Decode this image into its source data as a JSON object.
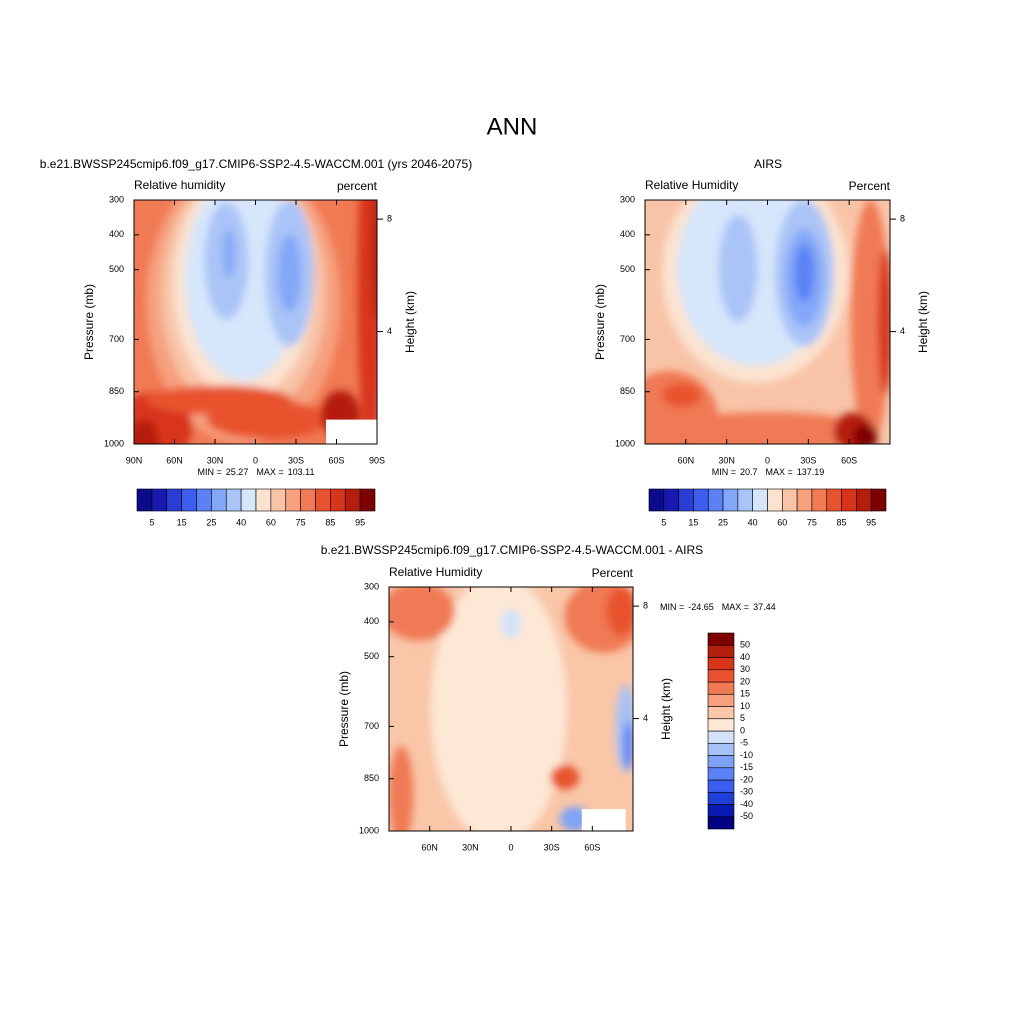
{
  "title": "ANN",
  "chart_data": [
    {
      "type": "contour",
      "title": "b.e21.BWSSP245cmip6.f09_g17.CMIP6-SSP2-4.5-WACCM.001 (yrs 2046-2075)",
      "left_label": "Relative humidity",
      "right_label": "percent",
      "ylabel": "Pressure (mb)",
      "y2label": "Height (km)",
      "xlim": [
        90,
        -90
      ],
      "xticks": [
        {
          "value": 90,
          "label": "90N"
        },
        {
          "value": 60,
          "label": "60N"
        },
        {
          "value": 30,
          "label": "30N"
        },
        0,
        {
          "value": -30,
          "label": "30S"
        },
        {
          "value": -60,
          "label": "60S"
        },
        {
          "value": -90,
          "label": "90S"
        }
      ],
      "ylim": [
        1000,
        300
      ],
      "yticks": [
        300,
        400,
        500,
        700,
        850,
        1000
      ],
      "y2lim": [
        0,
        8.68
      ],
      "y2ticks": [
        4,
        8
      ],
      "min_label": "MIN =",
      "min": 25.27,
      "max_label": "MAX =",
      "max": 103.11,
      "colorbar": {
        "orientation": "horizontal",
        "levels": [
          5,
          15,
          25,
          40,
          60,
          75,
          85,
          95
        ],
        "colors": [
          "#0a0a8a",
          "#1919b0",
          "#2a3ed6",
          "#3b5ef0",
          "#5a82f5",
          "#84a8f8",
          "#aac4f7",
          "#d6e6fb",
          "#fbe3d0",
          "#f8c4a8",
          "#f6a07e",
          "#f07a54",
          "#e8522f",
          "#d8341a",
          "#b51d0c",
          "#7f0000"
        ]
      }
    },
    {
      "type": "contour",
      "title": "AIRS",
      "left_label": "Relative Humidity",
      "right_label": "Percent",
      "ylabel": "Pressure (mb)",
      "y2label": "Height (km)",
      "xlim": [
        90,
        -90
      ],
      "xticks": [
        {
          "value": 60,
          "label": "60N"
        },
        {
          "value": 30,
          "label": "30N"
        },
        0,
        {
          "value": -30,
          "label": "30S"
        },
        {
          "value": -60,
          "label": "60S"
        }
      ],
      "ylim": [
        1000,
        300
      ],
      "yticks": [
        300,
        400,
        500,
        700,
        850,
        1000
      ],
      "y2lim": [
        0,
        8.68
      ],
      "y2ticks": [
        4,
        8
      ],
      "min_label": "MIN =",
      "min": 20.7,
      "max_label": "MAX =",
      "max": 137.19,
      "colorbar": {
        "orientation": "horizontal",
        "levels": [
          5,
          15,
          25,
          40,
          60,
          75,
          85,
          95
        ],
        "colors": [
          "#0a0a8a",
          "#1919b0",
          "#2a3ed6",
          "#3b5ef0",
          "#5a82f5",
          "#84a8f8",
          "#aac4f7",
          "#d6e6fb",
          "#fbe3d0",
          "#f8c4a8",
          "#f6a07e",
          "#f07a54",
          "#e8522f",
          "#d8341a",
          "#b51d0c",
          "#7f0000"
        ]
      }
    },
    {
      "type": "contour",
      "title": "b.e21.BWSSP245cmip6.f09_g17.CMIP6-SSP2-4.5-WACCM.001 - AIRS",
      "left_label": "Relative Humidity",
      "right_label": "Percent",
      "ylabel": "Pressure (mb)",
      "y2label": "Height (km)",
      "xlim": [
        90,
        -90
      ],
      "xticks": [
        {
          "value": 60,
          "label": "60N"
        },
        {
          "value": 30,
          "label": "30N"
        },
        0,
        {
          "value": -30,
          "label": "30S"
        },
        {
          "value": -60,
          "label": "60S"
        }
      ],
      "ylim": [
        1000,
        300
      ],
      "yticks": [
        300,
        400,
        500,
        700,
        850,
        1000
      ],
      "y2lim": [
        0,
        8.68
      ],
      "y2ticks": [
        4,
        8
      ],
      "min_label": "MIN =",
      "min": -24.65,
      "max_label": "MAX =",
      "max": 37.44,
      "colorbar": {
        "orientation": "vertical",
        "levels": [
          -50,
          -40,
          -30,
          -20,
          -15,
          -10,
          -5,
          0,
          5,
          10,
          15,
          20,
          30,
          40,
          50
        ],
        "colors": [
          "#000080",
          "#0a1ab0",
          "#1e3fd8",
          "#3a5ef0",
          "#5a82f5",
          "#7fa2f8",
          "#a6c1f8",
          "#d2e3fb",
          "#fde8d6",
          "#f9c6a8",
          "#f6a07e",
          "#f07a54",
          "#e8522f",
          "#d8341a",
          "#b51d0c",
          "#7f0000"
        ]
      }
    }
  ]
}
